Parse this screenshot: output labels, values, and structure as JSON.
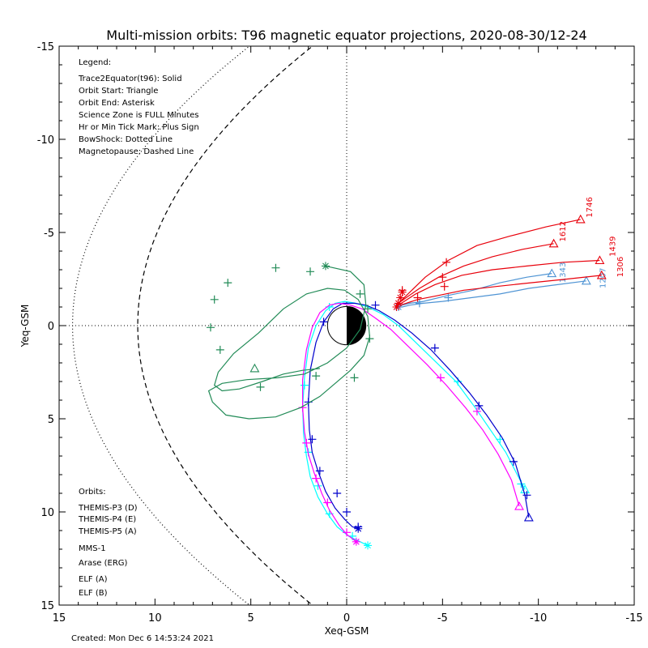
{
  "chart_data": {
    "type": "scatter",
    "title": "Multi-mission orbits: T96 magnetic equator projections, 2020-08-30/12-24",
    "xlabel": "Xeq-GSM",
    "ylabel": "Yeq-GSM",
    "xlim": [
      15,
      -15
    ],
    "ylim": [
      -15,
      15
    ],
    "x_ticks": [
      "15",
      "10",
      "5",
      "0",
      "-5",
      "-10",
      "-15"
    ],
    "y_ticks": [
      "-15",
      "-10",
      "-5",
      "0",
      "5",
      "10",
      "15"
    ],
    "grid": "dotted zero lines",
    "legend": {
      "heading": "Legend:",
      "lines": [
        "Trace2Equator(t96): Solid",
        "Orbit Start: Triangle",
        "Orbit End: Asterisk",
        "Science Zone is FULL Minutes",
        "Hr or Min Tick Mark: Plus Sign",
        "BowShock: Dotted Line",
        "Magnetopause: Dashed Line"
      ]
    },
    "orbits_heading": "Orbits:",
    "series": [
      {
        "name": "THEMIS-P3 (D)",
        "color": "#00ffff",
        "x": [
          -9.3,
          -8.9,
          -8.3,
          -7.5,
          -6.7,
          -5.7,
          -4.6,
          -3.6,
          -2.7,
          -1.9,
          -1.1,
          -0.5,
          0.1,
          0.6,
          1.1,
          1.6,
          2.0,
          2.2,
          2.3,
          2.25,
          2.1,
          1.9,
          1.5,
          1.0,
          0.5,
          -0.1,
          -0.7,
          -1.1
        ],
        "y": [
          8.8,
          8.0,
          6.8,
          5.6,
          4.4,
          3.0,
          1.9,
          0.9,
          0.0,
          -0.6,
          -1.0,
          -1.2,
          -1.3,
          -1.2,
          -0.8,
          0.0,
          1.2,
          2.8,
          4.4,
          5.8,
          7.0,
          8.1,
          9.2,
          10.1,
          10.8,
          11.3,
          11.6,
          11.8
        ],
        "ticks": [
          [
            -9.1,
            8.5
          ],
          [
            -8.0,
            6.1
          ],
          [
            -5.8,
            3.0
          ],
          [
            0.9,
            -1.0
          ],
          [
            2.2,
            3.2
          ],
          [
            2.0,
            6.8
          ],
          [
            1.5,
            8.6
          ],
          [
            0.9,
            10.1
          ],
          [
            -0.3,
            11.3
          ]
        ],
        "start": [
          -9.3,
          8.8
        ],
        "end": [
          -1.1,
          11.8
        ]
      },
      {
        "name": "THEMIS-P4 (E)",
        "color": "#0000cc",
        "x": [
          -9.5,
          -9.3,
          -8.8,
          -8.1,
          -7.3,
          -6.4,
          -5.4,
          -4.4,
          -3.4,
          -2.5,
          -1.7,
          -1.0,
          -0.4,
          0.2,
          0.7,
          1.2,
          1.6,
          1.9,
          2.0,
          1.95,
          1.8,
          1.5,
          1.1,
          0.6,
          0.1,
          -0.3,
          -0.6
        ],
        "y": [
          10.3,
          9.1,
          7.4,
          6.0,
          4.8,
          3.6,
          2.4,
          1.3,
          0.4,
          -0.3,
          -0.8,
          -1.1,
          -1.2,
          -1.2,
          -0.9,
          -0.2,
          0.9,
          2.4,
          4.1,
          5.6,
          6.8,
          7.8,
          8.9,
          9.8,
          10.4,
          10.8,
          10.9
        ],
        "ticks": [
          [
            -9.4,
            9.1
          ],
          [
            -8.7,
            7.3
          ],
          [
            -6.9,
            4.3
          ],
          [
            -4.6,
            1.2
          ],
          [
            -1.5,
            -1.1
          ],
          [
            1.2,
            -0.2
          ],
          [
            2.0,
            4.1
          ],
          [
            1.8,
            6.1
          ],
          [
            1.4,
            7.8
          ],
          [
            0.5,
            9.0
          ],
          [
            0.0,
            10.0
          ],
          [
            -0.6,
            10.8
          ]
        ],
        "start": [
          -9.5,
          10.3
        ],
        "end": [
          -0.6,
          10.9
        ]
      },
      {
        "name": "THEMIS-P5 (A)",
        "color": "#ff00ff",
        "x": [
          -9.0,
          -8.6,
          -7.9,
          -7.1,
          -6.2,
          -5.2,
          -4.2,
          -3.2,
          -2.3,
          -1.5,
          -0.8,
          -0.2,
          0.4,
          0.9,
          1.4,
          1.8,
          2.1,
          2.3,
          2.3,
          2.2,
          2.0,
          1.7,
          1.3,
          0.9,
          0.4,
          0.0,
          -0.5
        ],
        "y": [
          9.7,
          8.3,
          6.9,
          5.6,
          4.4,
          3.2,
          2.1,
          1.1,
          0.2,
          -0.4,
          -0.9,
          -1.1,
          -1.2,
          -1.1,
          -0.7,
          0.1,
          1.3,
          2.9,
          4.4,
          5.7,
          6.9,
          7.9,
          9.0,
          9.9,
          10.7,
          11.2,
          11.6
        ],
        "ticks": [
          [
            -6.8,
            4.6
          ],
          [
            -4.9,
            2.8
          ],
          [
            2.3,
            4.4
          ],
          [
            2.1,
            6.3
          ],
          [
            1.6,
            8.2
          ],
          [
            1.0,
            9.5
          ],
          [
            0.0,
            11.1
          ]
        ],
        "start": [
          -9.0,
          9.7
        ],
        "end": [
          -0.5,
          11.6
        ]
      },
      {
        "name": "MMS-1",
        "color": "#000000",
        "x": [],
        "y": [],
        "ticks": [],
        "start": null,
        "end": null
      },
      {
        "name": "Arase (ERG)",
        "color": "#228b57",
        "x": [
          1.1,
          -0.2,
          -0.9,
          -1.0,
          -0.7,
          0.0,
          1.0,
          2.2,
          3.6,
          5.2,
          6.5,
          7.2,
          7.0,
          6.3,
          5.1,
          3.7,
          2.4,
          1.4,
          0.6,
          -0.2,
          -0.9,
          -1.2,
          -1.1,
          -0.6,
          0.1,
          1.0,
          2.1,
          3.3,
          4.6,
          5.9,
          6.7,
          6.9,
          6.5,
          5.6,
          4.4,
          3.3,
          2.3,
          1.4
        ],
        "y": [
          -3.2,
          -2.9,
          -2.2,
          -1.1,
          0.2,
          1.2,
          2.0,
          2.6,
          2.8,
          2.9,
          3.1,
          3.5,
          4.1,
          4.8,
          5.0,
          4.9,
          4.4,
          3.8,
          3.1,
          2.4,
          1.6,
          0.6,
          -0.5,
          -1.4,
          -1.9,
          -2.0,
          -1.7,
          -0.9,
          0.4,
          1.5,
          2.5,
          3.2,
          3.5,
          3.4,
          3.0,
          2.6,
          2.4,
          2.3
        ],
        "ticks": [
          [
            -0.7,
            -1.7
          ],
          [
            6.2,
            -2.3
          ],
          [
            3.7,
            -3.1
          ],
          [
            1.9,
            -2.9
          ],
          [
            6.9,
            -1.4
          ],
          [
            7.1,
            0.1
          ],
          [
            6.6,
            1.3
          ],
          [
            4.5,
            3.3
          ],
          [
            1.6,
            2.7
          ],
          [
            -0.4,
            2.8
          ],
          [
            -1.1,
            -0.9
          ],
          [
            -1.2,
            0.7
          ]
        ],
        "start": [
          4.8,
          2.3
        ],
        "end": [
          1.1,
          -3.2
        ]
      },
      {
        "name": "ELF (A)",
        "color": "#4f94d4",
        "x": [
          -12.5,
          -11.0,
          -9.5,
          -8.0,
          -6.5,
          -5.0,
          -4.0,
          -3.3,
          -2.9,
          -2.7
        ],
        "y": [
          -2.4,
          -2.2,
          -2.0,
          -1.7,
          -1.5,
          -1.3,
          -1.2,
          -1.1,
          -1.0,
          -1.0
        ],
        "x2": [
          -10.7,
          -9.4,
          -8.0,
          -6.6,
          -5.2,
          -4.0,
          -3.3,
          -2.9,
          -2.7
        ],
        "y2": [
          -2.8,
          -2.6,
          -2.3,
          -1.9,
          -1.6,
          -1.3,
          -1.2,
          -1.1,
          -1.0
        ],
        "ticks": [
          [
            -5.3,
            -1.5
          ],
          [
            -3.8,
            -1.2
          ]
        ],
        "start": [
          -12.5,
          -2.4
        ],
        "start2": [
          -10.7,
          -2.8
        ],
        "end": [
          -2.7,
          -1.0
        ],
        "labels": [
          {
            "text": "1343",
            "x": -11.4,
            "y": -2.3
          },
          {
            "text": "1207",
            "x": -13.5,
            "y": -2.0
          }
        ]
      },
      {
        "name": "ELF (B)",
        "color": "#e8000b",
        "orbits": [
          {
            "x": [
              -12.2,
              -10.4,
              -8.5,
              -6.8,
              -5.3,
              -4.1,
              -3.3,
              -2.8,
              -2.6
            ],
            "y": [
              -5.7,
              -5.3,
              -4.8,
              -4.3,
              -3.5,
              -2.6,
              -1.8,
              -1.3,
              -1.1
            ],
            "label": "1746",
            "lx": -12.8,
            "ly": -5.8
          },
          {
            "x": [
              -10.8,
              -9.2,
              -7.6,
              -6.1,
              -4.8,
              -3.8,
              -3.1,
              -2.7,
              -2.6
            ],
            "y": [
              -4.4,
              -4.1,
              -3.7,
              -3.2,
              -2.6,
              -2.0,
              -1.5,
              -1.2,
              -1.0
            ],
            "label": "1612",
            "lx": -11.4,
            "ly": -4.5
          },
          {
            "x": [
              -13.2,
              -11.3,
              -9.4,
              -7.6,
              -6.0,
              -4.6,
              -3.6,
              -3.0,
              -2.7
            ],
            "y": [
              -3.5,
              -3.4,
              -3.2,
              -3.0,
              -2.7,
              -2.2,
              -1.7,
              -1.3,
              -1.1
            ],
            "label": "1439",
            "lx": -14.0,
            "ly": -3.7
          },
          {
            "x": [
              -13.3,
              -11.5,
              -9.6,
              -7.8,
              -6.1,
              -4.7,
              -3.7,
              -3.1,
              -2.8
            ],
            "y": [
              -2.7,
              -2.5,
              -2.3,
              -2.1,
              -1.9,
              -1.6,
              -1.4,
              -1.2,
              -1.1
            ],
            "label": "1306",
            "lx": -14.4,
            "ly": -2.6
          }
        ],
        "ticks": [
          [
            -5.2,
            -3.4
          ],
          [
            -5.0,
            -2.6
          ],
          [
            -5.1,
            -2.1
          ],
          [
            -3.7,
            -1.5
          ],
          [
            -2.9,
            -1.9
          ]
        ],
        "ends": [
          [
            -2.9,
            -1.8
          ],
          [
            -2.8,
            -1.5
          ],
          [
            -2.7,
            -1.2
          ],
          [
            -2.6,
            -1.0
          ]
        ]
      }
    ],
    "magnetopause": {
      "subsolar_x": 10.9,
      "style": "dashed"
    },
    "bowshock": {
      "subsolar_x": 14.3,
      "style": "dotted"
    },
    "earth": {
      "radius": 1
    }
  },
  "created": "Created: Mon Dec  6 14:53:24 2021"
}
